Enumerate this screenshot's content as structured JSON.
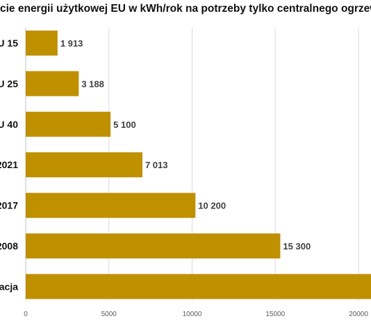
{
  "chart_data": {
    "type": "bar",
    "orientation": "horizontal",
    "title": "cie energii użytkowej EU w kWh/rok na potrzeby tylko centralnego ogrzew",
    "categories": [
      "U 15",
      "U 25",
      "U 40",
      "2021",
      "2017",
      "2008",
      "acja"
    ],
    "values": [
      1913,
      3188,
      5100,
      7013,
      10200,
      15300,
      21000
    ],
    "value_labels": [
      "1 913",
      "3 188",
      "5 100",
      "7 013",
      "10 200",
      "15 300",
      ""
    ],
    "x_ticks": [
      "0",
      "5000",
      "10000",
      "15000",
      "20000"
    ],
    "xlim": [
      0,
      20000
    ],
    "grid": "vertical",
    "bar_color": "#bf9000"
  }
}
